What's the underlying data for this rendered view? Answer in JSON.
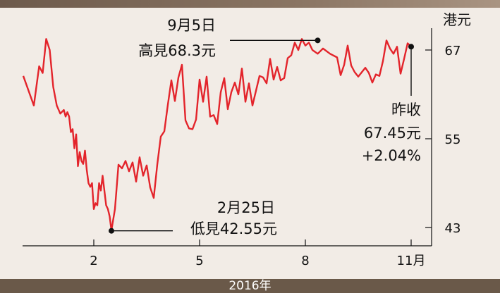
{
  "chart_data": {
    "type": "line",
    "xlabel": "2016年",
    "ylabel": "港元",
    "ylim": [
      43,
      68.5
    ],
    "yticks": [
      43,
      55,
      67
    ],
    "x_ticks": [
      {
        "label": "2",
        "month": 2
      },
      {
        "label": "5",
        "month": 5
      },
      {
        "label": "8",
        "month": 8
      },
      {
        "label": "11月",
        "month": 11
      }
    ],
    "series": [
      {
        "color": "#e3242b",
        "x": [
          0.0,
          0.3,
          0.45,
          0.55,
          0.65,
          0.75,
          0.85,
          0.95,
          1.05,
          1.15,
          1.2,
          1.25,
          1.3,
          1.35,
          1.4,
          1.45,
          1.5,
          1.55,
          1.6,
          1.65,
          1.7,
          1.75,
          1.8,
          1.85,
          1.9,
          1.95,
          2.0,
          2.05,
          2.1,
          2.15,
          2.2,
          2.25,
          2.3,
          2.35,
          2.4,
          2.45,
          2.5,
          2.6,
          2.7,
          2.8,
          2.9,
          3.0,
          3.1,
          3.2,
          3.3,
          3.4,
          3.5,
          3.6,
          3.7,
          3.8,
          3.9,
          4.0,
          4.1,
          4.2,
          4.3,
          4.4,
          4.5,
          4.6,
          4.7,
          4.8,
          4.9,
          5.0,
          5.1,
          5.2,
          5.3,
          5.4,
          5.5,
          5.6,
          5.7,
          5.8,
          5.9,
          6.0,
          6.1,
          6.2,
          6.3,
          6.4,
          6.5,
          6.6,
          6.7,
          6.8,
          6.9,
          7.0,
          7.1,
          7.2,
          7.3,
          7.4,
          7.5,
          7.6,
          7.7,
          7.8,
          7.9,
          8.0,
          8.1,
          8.2,
          8.35,
          8.5,
          8.7,
          8.9,
          9.0,
          9.1,
          9.2,
          9.3,
          9.4,
          9.5,
          9.6,
          9.7,
          9.8,
          9.9,
          10.0,
          10.1,
          10.2,
          10.3,
          10.4,
          10.5,
          10.6,
          10.7,
          10.8,
          10.9,
          11.0
        ],
        "values": [
          63.5,
          59.5,
          64.8,
          63.9,
          68.5,
          67.0,
          62.0,
          59.5,
          58.4,
          58.9,
          58.0,
          58.6,
          58.0,
          55.9,
          56.3,
          53.7,
          55.6,
          51.3,
          53.2,
          52.0,
          51.6,
          53.4,
          50.8,
          49.0,
          48.5,
          49.0,
          45.5,
          46.3,
          46.0,
          49.0,
          48.0,
          50.0,
          48.0,
          46.0,
          45.5,
          44.5,
          42.6,
          45.5,
          51.5,
          51.0,
          52.0,
          50.6,
          51.8,
          49.2,
          52.5,
          50.0,
          51.4,
          48.4,
          47.0,
          51.5,
          55.3,
          56.0,
          59.6,
          62.9,
          60.1,
          63.3,
          65.0,
          57.5,
          56.4,
          56.3,
          57.6,
          63.0,
          60.0,
          63.4,
          58.0,
          58.2,
          57.0,
          61.3,
          63.2,
          59.0,
          61.3,
          62.6,
          61.0,
          64.5,
          60.0,
          62.5,
          59.5,
          61.5,
          63.5,
          63.3,
          62.5,
          65.8,
          63.0,
          64.7,
          62.9,
          63.2,
          65.9,
          66.3,
          68.0,
          67.0,
          68.5,
          67.6,
          68.0,
          67.0,
          66.5,
          67.2,
          66.5,
          66.0,
          63.6,
          65.0,
          67.6,
          64.9,
          64.0,
          63.4,
          64.0,
          64.6,
          63.9,
          62.6,
          63.7,
          63.5,
          65.5,
          68.3,
          67.2,
          66.5,
          67.45,
          63.8,
          65.8,
          67.9,
          67.45
        ]
      }
    ],
    "annotations": [
      {
        "x": 8.35,
        "y": 68.3,
        "date": "9月5日",
        "text": "高見68.3元",
        "kind": "high"
      },
      {
        "x": 2.5,
        "y": 42.55,
        "date": "2月25日",
        "text": "低見42.55元",
        "kind": "low"
      },
      {
        "x": 11.0,
        "y": 67.45,
        "lines": [
          "昨收",
          "67.45元",
          "+2.04%"
        ],
        "kind": "close"
      }
    ]
  }
}
